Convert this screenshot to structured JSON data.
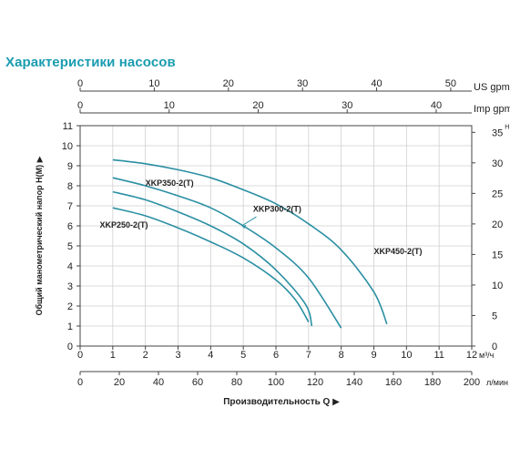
{
  "title": "Характеристики насосов",
  "chart_data": {
    "type": "line",
    "xlabel": "Производительность Q",
    "ylabel": "Общий манометрический напор H(M)",
    "y_right_label": "H (ft)",
    "x_unit": "м³/ч",
    "x_lmin_unit": "л/мин",
    "x_us_unit": "US gpm",
    "x_imp_unit": "Imp gpm",
    "xlim": [
      0,
      12
    ],
    "ylim": [
      0,
      11
    ],
    "grid": true,
    "x_ticks": [
      "0",
      "1",
      "2",
      "3",
      "4",
      "5",
      "6",
      "7",
      "8",
      "9",
      "10",
      "11",
      "12"
    ],
    "y_ticks": [
      "0",
      "1",
      "2",
      "3",
      "4",
      "5",
      "6",
      "7",
      "8",
      "9",
      "10",
      "11"
    ],
    "lmin_ticks": [
      "0",
      "20",
      "40",
      "60",
      "80",
      "100",
      "120",
      "140",
      "160",
      "180",
      "200"
    ],
    "us_gpm_ticks": [
      "0",
      "10",
      "20",
      "30",
      "40",
      "50"
    ],
    "imp_gpm_ticks": [
      "0",
      "10",
      "20",
      "30",
      "40"
    ],
    "ft_ticks": [
      "0",
      "5",
      "10",
      "15",
      "20",
      "25",
      "30",
      "35"
    ],
    "series": [
      {
        "name": "XKP250-2(T)",
        "x": [
          1.0,
          2.0,
          3.0,
          4.0,
          5.0,
          6.0,
          6.6,
          7.0
        ],
        "y": [
          6.9,
          6.5,
          5.9,
          5.2,
          4.4,
          3.3,
          2.3,
          1.2
        ]
      },
      {
        "name": "XKP300-2(T)",
        "x": [
          1.0,
          2.0,
          3.0,
          4.0,
          5.0,
          6.0,
          6.9,
          7.1
        ],
        "y": [
          7.7,
          7.3,
          6.7,
          6.0,
          5.1,
          3.8,
          2.1,
          1.0
        ]
      },
      {
        "name": "XKP350-2(T)",
        "x": [
          1.0,
          2.0,
          3.0,
          4.0,
          5.0,
          6.0,
          7.0,
          8.0
        ],
        "y": [
          8.4,
          8.0,
          7.5,
          6.9,
          6.0,
          4.9,
          3.4,
          0.9
        ]
      },
      {
        "name": "XKP450-2(T)",
        "x": [
          1.0,
          2.0,
          3.0,
          4.0,
          5.0,
          6.0,
          7.0,
          8.0,
          9.0,
          9.4
        ],
        "y": [
          9.3,
          9.1,
          8.8,
          8.4,
          7.8,
          7.1,
          6.1,
          4.8,
          2.7,
          1.1
        ]
      }
    ],
    "line_color": "#2a8fa3"
  }
}
